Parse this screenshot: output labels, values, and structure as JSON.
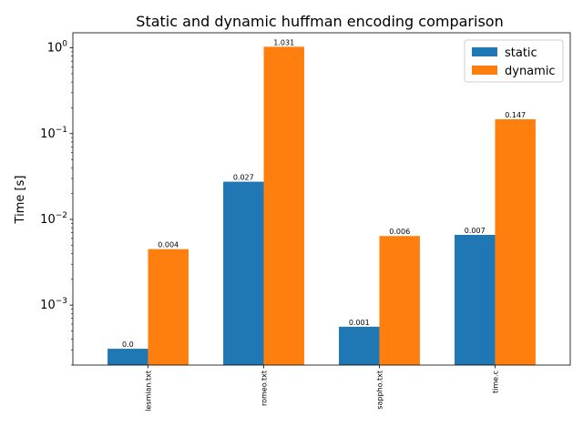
{
  "chart_data": {
    "type": "bar",
    "title": "Static and dynamic huffman encoding comparison",
    "xlabel": "",
    "ylabel": "Time [s]",
    "yscale": "log",
    "ylim": [
      0.0002,
      1.5
    ],
    "yticks": [
      {
        "value": 0.001,
        "base": "10",
        "exp": "−3"
      },
      {
        "value": 0.01,
        "base": "10",
        "exp": "−2"
      },
      {
        "value": 0.1,
        "base": "10",
        "exp": "−1"
      },
      {
        "value": 1,
        "base": "10",
        "exp": "0"
      }
    ],
    "categories": [
      "lesmian.txt",
      "romeo.txt",
      "sappho.txt",
      "time.c"
    ],
    "series": [
      {
        "name": "static",
        "color": "#1f77b4",
        "values": [
          0.00031,
          0.0275,
          0.00056,
          0.0066
        ],
        "labels": [
          "0.0",
          "0.027",
          "0.001",
          "0.007"
        ]
      },
      {
        "name": "dynamic",
        "color": "#ff7f0e",
        "values": [
          0.0045,
          1.031,
          0.0064,
          0.147
        ],
        "labels": [
          "0.004",
          "1.031",
          "0.006",
          "0.147"
        ]
      }
    ],
    "grid": false,
    "legend": "top-right"
  }
}
